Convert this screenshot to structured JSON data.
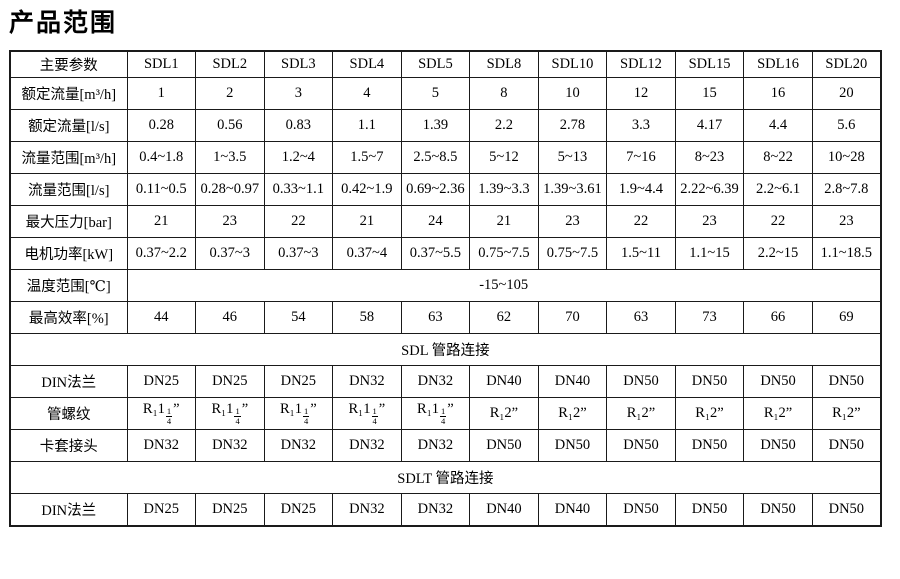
{
  "page_title": "产品范围",
  "table": {
    "header": [
      "主要参数",
      "SDL1",
      "SDL2",
      "SDL3",
      "SDL4",
      "SDL5",
      "SDL8",
      "SDL10",
      "SDL12",
      "SDL15",
      "SDL16",
      "SDL20"
    ],
    "rows": [
      {
        "type": "data",
        "label": "额定流量[m³/h]",
        "cells": [
          "1",
          "2",
          "3",
          "4",
          "5",
          "8",
          "10",
          "12",
          "15",
          "16",
          "20"
        ]
      },
      {
        "type": "data",
        "label": "额定流量[l/s]",
        "cells": [
          "0.28",
          "0.56",
          "0.83",
          "1.1",
          "1.39",
          "2.2",
          "2.78",
          "3.3",
          "4.17",
          "4.4",
          "5.6"
        ]
      },
      {
        "type": "data",
        "label": "流量范围[m³/h]",
        "cells": [
          "0.4~1.8",
          "1~3.5",
          "1.2~4",
          "1.5~7",
          "2.5~8.5",
          "5~12",
          "5~13",
          "7~16",
          "8~23",
          "8~22",
          "10~28"
        ]
      },
      {
        "type": "data",
        "label": "流量范围[l/s]",
        "tight": true,
        "cells": [
          "0.11~0.5",
          "0.28~0.97",
          "0.33~1.1",
          "0.42~1.9",
          "0.69~2.36",
          "1.39~3.3",
          "1.39~3.61",
          "1.9~4.4",
          "2.22~6.39",
          "2.2~6.1",
          "2.8~7.8"
        ]
      },
      {
        "type": "data",
        "label": "最大压力[bar]",
        "cells": [
          "21",
          "23",
          "22",
          "21",
          "24",
          "21",
          "23",
          "22",
          "23",
          "22",
          "23"
        ]
      },
      {
        "type": "data",
        "label": "电机功率[kW]",
        "cells": [
          "0.37~2.2",
          "0.37~3",
          "0.37~3",
          "0.37~4",
          "0.37~5.5",
          "0.75~7.5",
          "0.75~7.5",
          "1.5~11",
          "1.1~15",
          "2.2~15",
          "1.1~18.5"
        ]
      },
      {
        "type": "merged",
        "label": "温度范围[℃]",
        "value": "-15~105"
      },
      {
        "type": "data",
        "label": "最高效率[%]",
        "cells": [
          "44",
          "46",
          "54",
          "58",
          "63",
          "62",
          "70",
          "63",
          "73",
          "66",
          "69"
        ]
      },
      {
        "type": "section",
        "text": "SDL 管路连接"
      },
      {
        "type": "data",
        "label": "DIN法兰",
        "cells": [
          "DN25",
          "DN25",
          "DN25",
          "DN32",
          "DN32",
          "DN40",
          "DN40",
          "DN50",
          "DN50",
          "DN50",
          "DN50"
        ]
      },
      {
        "type": "data",
        "label": "管螺纹",
        "cells": [
          "R₁1¼”",
          "R₁1¼”",
          "R₁1¼”",
          "R₁1¼”",
          "R₁1¼”",
          "R₁2”",
          "R₁2”",
          "R₁2”",
          "R₁2”",
          "R₁2”",
          "R₁2”"
        ]
      },
      {
        "type": "data",
        "label": "卡套接头",
        "cells": [
          "DN32",
          "DN32",
          "DN32",
          "DN32",
          "DN32",
          "DN50",
          "DN50",
          "DN50",
          "DN50",
          "DN50",
          "DN50"
        ]
      },
      {
        "type": "section",
        "text": "SDLT 管路连接"
      },
      {
        "type": "data",
        "label": "DIN法兰",
        "cells": [
          "DN25",
          "DN25",
          "DN25",
          "DN32",
          "DN32",
          "DN40",
          "DN40",
          "DN50",
          "DN50",
          "DN50",
          "DN50"
        ]
      }
    ]
  }
}
